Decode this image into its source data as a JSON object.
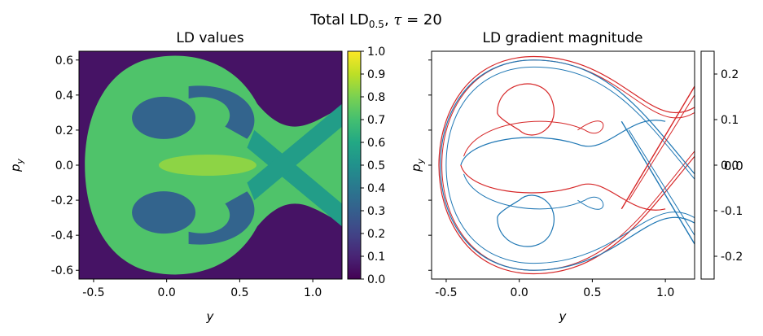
{
  "suptitle": {
    "main": "Total LD",
    "sub": "0.5",
    "rest": ", ",
    "tau": "τ",
    "tail": " = 20"
  },
  "chart_data": [
    {
      "type": "heatmap",
      "title": "LD values",
      "xlabel": "y",
      "ylabel": "p",
      "ylabel_sub": "y",
      "xlim": [
        -0.6,
        1.2
      ],
      "ylim": [
        -0.65,
        0.65
      ],
      "xticks": [
        "-0.5",
        "0.0",
        "0.5",
        "1.0"
      ],
      "xtick_values": [
        -0.5,
        0.0,
        0.5,
        1.0
      ],
      "yticks": [
        "-0.6",
        "-0.4",
        "-0.2",
        "0.0",
        "0.2",
        "0.4",
        "0.6"
      ],
      "ytick_values": [
        -0.6,
        -0.4,
        -0.2,
        0.0,
        0.2,
        0.4,
        0.6
      ],
      "colormap": "viridis",
      "colorbar": {
        "range": [
          0.0,
          1.0
        ],
        "ticks": [
          "0.0",
          "0.1",
          "0.2",
          "0.3",
          "0.4",
          "0.5",
          "0.6",
          "0.7",
          "0.8",
          "0.9",
          "1.0"
        ],
        "tick_values": [
          0.0,
          0.1,
          0.2,
          0.3,
          0.4,
          0.5,
          0.6,
          0.7,
          0.8,
          0.9,
          1.0
        ]
      },
      "regions": [
        {
          "name": "outer-region",
          "value": 0.72
        },
        {
          "name": "upper-lobe",
          "value": 0.32
        },
        {
          "name": "lower-lobe",
          "value": 0.32
        },
        {
          "name": "core",
          "value": 0.85
        },
        {
          "name": "escape-channels",
          "value": 0.55
        },
        {
          "name": "background",
          "value": 0.05
        }
      ]
    },
    {
      "type": "line",
      "title": "LD gradient magnitude",
      "xlabel": "y",
      "ylabel": "p",
      "ylabel_sub": "y",
      "xlim": [
        -0.6,
        1.2
      ],
      "ylim": [
        -0.65,
        0.65
      ],
      "xticks": [
        "-0.5",
        "0.0",
        "0.5",
        "1.0"
      ],
      "xtick_values": [
        -0.5,
        0.0,
        0.5,
        1.0
      ],
      "colors": {
        "stable": "#1f77b4",
        "unstable": "#d62728"
      },
      "colorbar": {
        "ticks": [
          "-0.2",
          "-0.1",
          "0.0",
          "0.1",
          "0.2"
        ],
        "tick_values": [
          -0.2,
          -0.1,
          0.0,
          0.1,
          0.2
        ],
        "range": [
          -0.25,
          0.25
        ],
        "offset_text": "0.0"
      }
    }
  ]
}
